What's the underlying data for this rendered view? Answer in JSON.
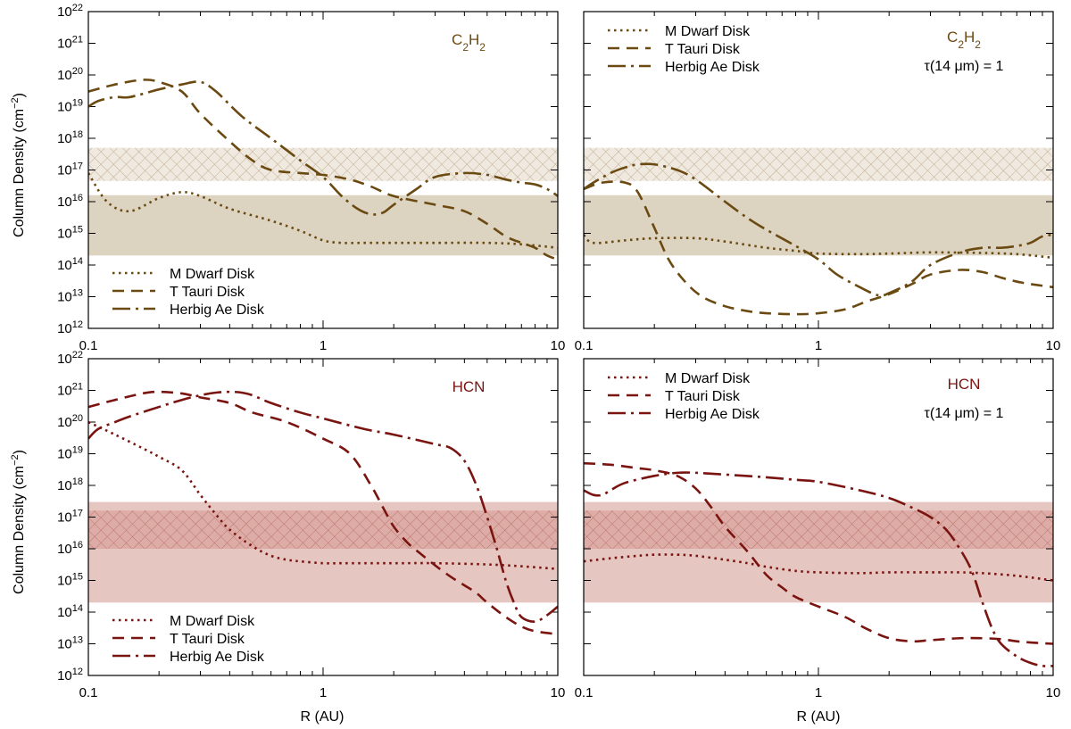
{
  "figure": {
    "ylabel": "Column Density (cm",
    "ylabel_unit_exp": "−2",
    "ylabel_close": ")",
    "xlabel": "R (AU)",
    "tau_label": "τ(14 μm) = 1"
  },
  "colors": {
    "c2h2": "#6b4a12",
    "c2h2_band": "#dcd3c1",
    "c2h2_hatch": "#c8b596",
    "hcn": "#7a1410",
    "hcn_band": "#e6c6c1",
    "hcn_hatch": "#b86e66"
  },
  "chart_data": [
    {
      "type": "line",
      "panel": "top-left",
      "species_label": {
        "main": "C",
        "sub1": "2",
        "mid": "H",
        "sub2": "2"
      },
      "show_tau": false,
      "legend_position": "bottom-left",
      "xscale": "log",
      "yscale": "log",
      "xlim": [
        0.1,
        10
      ],
      "ylim": [
        1000000000000.0,
        1e+22
      ],
      "x_ticks": [
        "0.1",
        "1",
        "10"
      ],
      "y_tick_exponents": [
        "12",
        "13",
        "14",
        "15",
        "16",
        "17",
        "18",
        "19",
        "20",
        "21",
        "22"
      ],
      "bands": {
        "solid": [
          200000000000000.0,
          1.6e+16
        ],
        "hatched": [
          4.5e+16,
          5e+17
        ]
      },
      "series": [
        {
          "name": "M Dwarf Disk",
          "style": "dotted",
          "x": [
            0.1,
            0.12,
            0.15,
            0.2,
            0.25,
            0.3,
            0.4,
            0.6,
            0.8,
            1.0,
            1.2,
            1.5,
            2,
            3,
            5,
            7,
            10
          ],
          "y": [
            8e+16,
            1e+16,
            5000000000000000.0,
            1.3e+16,
            2e+16,
            1.5e+16,
            6000000000000000.0,
            2500000000000000.0,
            1200000000000000.0,
            600000000000000.0,
            500000000000000.0,
            500000000000000.0,
            500000000000000.0,
            500000000000000.0,
            500000000000000.0,
            450000000000000.0,
            350000000000000.0
          ]
        },
        {
          "name": "T Tauri Disk",
          "style": "dashed",
          "x": [
            0.1,
            0.13,
            0.17,
            0.2,
            0.25,
            0.3,
            0.4,
            0.5,
            0.6,
            0.8,
            1.0,
            1.3,
            1.6,
            2,
            3,
            4,
            5,
            6,
            7,
            8,
            9,
            10
          ],
          "y": [
            3e+19,
            5e+19,
            7e+19,
            6e+19,
            3e+19,
            6e+18,
            8e+17,
            2e+17,
            1e+17,
            8e+16,
            7e+16,
            5e+16,
            3e+16,
            1.5e+16,
            8000000000000000.0,
            5000000000000000.0,
            2000000000000000.0,
            800000000000000.0,
            500000000000000.0,
            350000000000000.0,
            200000000000000.0,
            150000000000000.0
          ]
        },
        {
          "name": "Herbig Ae Disk",
          "style": "dashdot",
          "x": [
            0.1,
            0.11,
            0.13,
            0.15,
            0.2,
            0.25,
            0.3,
            0.35,
            0.45,
            0.6,
            0.8,
            1.0,
            1.2,
            1.4,
            1.6,
            1.8,
            2,
            2.5,
            3,
            4,
            5,
            6,
            7,
            8,
            9,
            10
          ],
          "y": [
            1e+19,
            1.5e+19,
            2e+19,
            2e+19,
            3.5e+19,
            5e+19,
            6e+19,
            3e+19,
            5e+18,
            1e+18,
            2e+17,
            6e+16,
            1.5e+16,
            6000000000000000.0,
            4000000000000000.0,
            4500000000000000.0,
            8000000000000000.0,
            2.5e+16,
            6e+16,
            8e+16,
            7e+16,
            5e+16,
            4e+16,
            3.5e+16,
            2.5e+16,
            1.5e+16
          ]
        }
      ]
    },
    {
      "type": "line",
      "panel": "top-right",
      "species_label": {
        "main": "C",
        "sub1": "2",
        "mid": "H",
        "sub2": "2"
      },
      "show_tau": true,
      "legend_position": "top-left",
      "xscale": "log",
      "yscale": "log",
      "xlim": [
        0.1,
        10
      ],
      "ylim": [
        1000000000000.0,
        1e+22
      ],
      "x_ticks": [
        "0.1",
        "1",
        "10"
      ],
      "y_tick_exponents": [],
      "bands": {
        "solid": [
          200000000000000.0,
          1.6e+16
        ],
        "hatched": [
          4.5e+16,
          5e+17
        ]
      },
      "series": [
        {
          "name": "M Dwarf Disk",
          "style": "dotted",
          "x": [
            0.1,
            0.11,
            0.15,
            0.2,
            0.3,
            0.4,
            0.6,
            0.8,
            1.0,
            1.5,
            2,
            3,
            5,
            7,
            10
          ],
          "y": [
            900000000000000.0,
            500000000000000.0,
            600000000000000.0,
            700000000000000.0,
            700000000000000.0,
            550000000000000.0,
            350000000000000.0,
            280000000000000.0,
            230000000000000.0,
            220000000000000.0,
            230000000000000.0,
            250000000000000.0,
            240000000000000.0,
            220000000000000.0,
            170000000000000.0
          ]
        },
        {
          "name": "T Tauri Disk",
          "style": "dashed",
          "x": [
            0.1,
            0.12,
            0.15,
            0.17,
            0.2,
            0.23,
            0.27,
            0.32,
            0.4,
            0.5,
            0.6,
            0.8,
            1.0,
            1.3,
            1.6,
            2,
            2.5,
            3,
            4,
            5,
            6,
            7,
            8,
            10
          ],
          "y": [
            2.5e+16,
            4e+16,
            4e+16,
            2e+16,
            1500000000000000.0,
            150000000000000.0,
            30000000000000.0,
            10000000000000.0,
            5000000000000.0,
            3500000000000.0,
            3000000000000.0,
            2800000000000.0,
            3000000000000.0,
            4000000000000.0,
            7000000000000.0,
            12000000000000.0,
            25000000000000.0,
            50000000000000.0,
            70000000000000.0,
            60000000000000.0,
            40000000000000.0,
            30000000000000.0,
            25000000000000.0,
            20000000000000.0
          ]
        },
        {
          "name": "Herbig Ae Disk",
          "style": "dashdot",
          "x": [
            0.1,
            0.11,
            0.13,
            0.15,
            0.17,
            0.2,
            0.25,
            0.3,
            0.4,
            0.5,
            0.6,
            0.8,
            1.0,
            1.2,
            1.5,
            1.8,
            2,
            2.5,
            3,
            4,
            5,
            6,
            7,
            8,
            9,
            10
          ],
          "y": [
            2.5e+16,
            4e+16,
            8e+16,
            1.2e+17,
            1.5e+17,
            1.5e+17,
            1e+17,
            5e+16,
            1e+16,
            3000000000000000.0,
            1300000000000000.0,
            400000000000000.0,
            150000000000000.0,
            50000000000000.0,
            20000000000000.0,
            11000000000000.0,
            13000000000000.0,
            30000000000000.0,
            100000000000000.0,
            250000000000000.0,
            350000000000000.0,
            350000000000000.0,
            400000000000000.0,
            500000000000000.0,
            800000000000000.0,
            900000000000000.0
          ]
        }
      ]
    },
    {
      "type": "line",
      "panel": "bottom-left",
      "species_label": {
        "main": "HCN",
        "sub1": "",
        "mid": "",
        "sub2": ""
      },
      "show_tau": false,
      "legend_position": "bottom-left",
      "xscale": "log",
      "yscale": "log",
      "xlim": [
        0.1,
        10
      ],
      "ylim": [
        1000000000000.0,
        1e+22
      ],
      "x_ticks": [
        "0.1",
        "1",
        "10"
      ],
      "y_tick_exponents": [
        "12",
        "13",
        "14",
        "15",
        "16",
        "17",
        "18",
        "19",
        "20",
        "21",
        "22"
      ],
      "bands": {
        "solid": [
          200000000000000.0,
          3e+17
        ],
        "hatched": [
          1e+16,
          1.6e+17
        ]
      },
      "series": [
        {
          "name": "M Dwarf Disk",
          "style": "dotted",
          "x": [
            0.1,
            0.13,
            0.17,
            0.2,
            0.25,
            0.3,
            0.35,
            0.4,
            0.5,
            0.6,
            0.7,
            0.8,
            1.0,
            1.2,
            1.5,
            2,
            3,
            5,
            7,
            10
          ],
          "y": [
            1e+20,
            4e+19,
            1.5e+19,
            8e+18,
            3e+18,
            5e+17,
            1.2e+17,
            4e+16,
            1.2e+16,
            6000000000000000.0,
            4500000000000000.0,
            4000000000000000.0,
            3500000000000000.0,
            3500000000000000.0,
            3500000000000000.0,
            3500000000000000.0,
            3500000000000000.0,
            3200000000000000.0,
            2800000000000000.0,
            2300000000000000.0
          ]
        },
        {
          "name": "T Tauri Disk",
          "style": "dashed",
          "x": [
            0.1,
            0.13,
            0.17,
            0.2,
            0.25,
            0.3,
            0.4,
            0.5,
            0.7,
            1.0,
            1.3,
            1.6,
            1.8,
            2,
            2.3,
            2.6,
            3,
            3.5,
            4,
            4.5,
            5,
            6,
            7,
            8,
            10
          ],
          "y": [
            3e+20,
            5e+20,
            8e+20,
            9e+20,
            8e+20,
            6e+20,
            4e+20,
            2e+20,
            1e+20,
            3e+19,
            1e+19,
            1e+18,
            2e+17,
            5e+16,
            1.5e+16,
            7000000000000000.0,
            3000000000000000.0,
            1300000000000000.0,
            700000000000000.0,
            400000000000000.0,
            200000000000000.0,
            70000000000000.0,
            35000000000000.0,
            25000000000000.0,
            20000000000000.0
          ]
        },
        {
          "name": "Herbig Ae Disk",
          "style": "dashdot",
          "x": [
            0.1,
            0.11,
            0.13,
            0.15,
            0.2,
            0.25,
            0.3,
            0.35,
            0.4,
            0.45,
            0.5,
            0.6,
            0.8,
            1.0,
            1.5,
            2,
            3,
            3.5,
            4,
            4.5,
            5,
            5.5,
            6,
            6.5,
            7,
            8,
            9,
            10
          ],
          "y": [
            3e+19,
            6e+19,
            1e+20,
            1.5e+20,
            3e+20,
            5e+20,
            7e+20,
            8.5e+20,
            9e+20,
            8.5e+20,
            7e+20,
            4e+20,
            2e+20,
            1.3e+20,
            6e+19,
            4e+19,
            2e+19,
            1.5e+19,
            6e+18,
            1e+18,
            1e+17,
            1e+16,
            1000000000000000.0,
            200000000000000.0,
            70000000000000.0,
            50000000000000.0,
            80000000000000.0,
            150000000000000.0
          ]
        }
      ]
    },
    {
      "type": "line",
      "panel": "bottom-right",
      "species_label": {
        "main": "HCN",
        "sub1": "",
        "mid": "",
        "sub2": ""
      },
      "show_tau": true,
      "legend_position": "top-left",
      "xscale": "log",
      "yscale": "log",
      "xlim": [
        0.1,
        10
      ],
      "ylim": [
        1000000000000.0,
        1e+22
      ],
      "x_ticks": [
        "0.1",
        "1",
        "10"
      ],
      "y_tick_exponents": [],
      "bands": {
        "solid": [
          200000000000000.0,
          3e+17
        ],
        "hatched": [
          1e+16,
          1.6e+17
        ]
      },
      "series": [
        {
          "name": "M Dwarf Disk",
          "style": "dotted",
          "x": [
            0.1,
            0.13,
            0.17,
            0.2,
            0.25,
            0.3,
            0.4,
            0.5,
            0.6,
            0.8,
            1.0,
            1.5,
            2,
            3,
            4,
            5,
            7,
            10
          ],
          "y": [
            4000000000000000.0,
            5000000000000000.0,
            6000000000000000.0,
            6500000000000000.0,
            6500000000000000.0,
            6000000000000000.0,
            4500000000000000.0,
            3500000000000000.0,
            2700000000000000.0,
            2000000000000000.0,
            1800000000000000.0,
            1700000000000000.0,
            1800000000000000.0,
            1800000000000000.0,
            1800000000000000.0,
            1700000000000000.0,
            1400000000000000.0,
            1000000000000000.0
          ]
        },
        {
          "name": "T Tauri Disk",
          "style": "dashed",
          "x": [
            0.1,
            0.13,
            0.17,
            0.2,
            0.25,
            0.3,
            0.35,
            0.4,
            0.5,
            0.6,
            0.7,
            0.8,
            1.0,
            1.3,
            1.6,
            2,
            2.5,
            3,
            4,
            5,
            6,
            7,
            8,
            10
          ],
          "y": [
            5e+18,
            4.5e+18,
            3.5e+18,
            3e+18,
            2e+18,
            8e+17,
            2e+17,
            5e+16,
            8000000000000000.0,
            1500000000000000.0,
            600000000000000.0,
            300000000000000.0,
            150000000000000.0,
            70000000000000.0,
            30000000000000.0,
            15000000000000.0,
            12000000000000.0,
            13000000000000.0,
            15000000000000.0,
            15000000000000.0,
            14000000000000.0,
            12000000000000.0,
            11000000000000.0,
            10000000000000.0
          ]
        },
        {
          "name": "Herbig Ae Disk",
          "style": "dashdot",
          "x": [
            0.1,
            0.11,
            0.12,
            0.13,
            0.15,
            0.2,
            0.25,
            0.3,
            0.4,
            0.6,
            0.8,
            1.0,
            1.5,
            2,
            2.5,
            3,
            3.5,
            4,
            4.5,
            5,
            5.5,
            6,
            7,
            8,
            9,
            10
          ],
          "y": [
            7e+17,
            5e+17,
            5e+17,
            7e+17,
            1.2e+18,
            2e+18,
            2.5e+18,
            2.5e+18,
            2.2e+18,
            1.8e+18,
            1.5e+18,
            1.3e+18,
            7e+17,
            4e+17,
            2e+17,
            1e+17,
            4e+16,
            1e+16,
            2000000000000000.0,
            200000000000000.0,
            30000000000000.0,
            10000000000000.0,
            4000000000000.0,
            2500000000000.0,
            2000000000000.0,
            2000000000000.0
          ]
        }
      ]
    }
  ]
}
